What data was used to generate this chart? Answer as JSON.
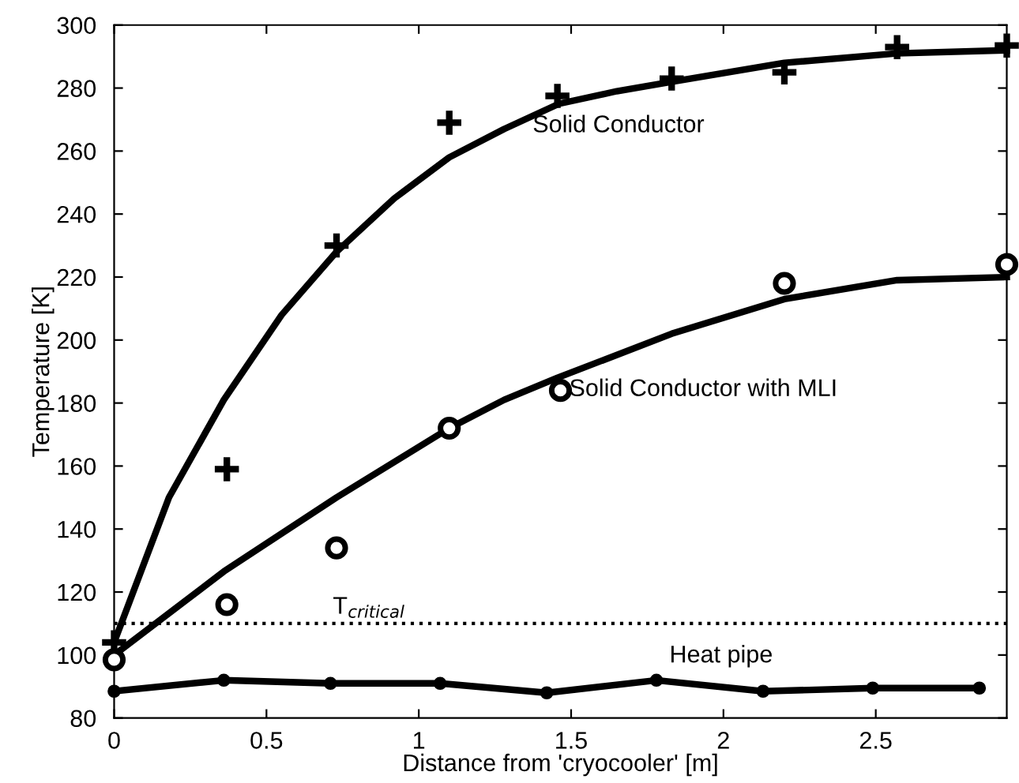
{
  "chart_data": {
    "type": "line",
    "xlabel": "Distance from 'cryocooler' [m]",
    "ylabel": "Temperature [K]",
    "xlim": [
      0,
      2.93
    ],
    "ylim": [
      80,
      300
    ],
    "xticks": [
      0,
      0.5,
      1,
      1.5,
      2,
      2.5
    ],
    "yticks": [
      80,
      100,
      120,
      140,
      160,
      180,
      200,
      220,
      240,
      260,
      280,
      300
    ],
    "grid": false,
    "series": [
      {
        "type": "scatter",
        "marker": "cross",
        "color": "#000000",
        "x": [
          0,
          0.37,
          0.73,
          1.1,
          1.455,
          1.83,
          2.2,
          2.57,
          2.93
        ],
        "values": [
          104,
          159,
          230,
          269,
          277.5,
          283,
          285,
          293,
          293.5
        ]
      },
      {
        "name": "Solid Conductor",
        "marker": "none",
        "color": "#000000",
        "x": [
          0,
          0.18,
          0.36,
          0.55,
          0.73,
          0.92,
          1.1,
          1.28,
          1.46,
          1.65,
          1.83,
          2.2,
          2.57,
          2.93
        ],
        "values": [
          104,
          150,
          181,
          208,
          228,
          245,
          258,
          267,
          275,
          279,
          282,
          288,
          291,
          292
        ]
      },
      {
        "type": "scatter",
        "marker": "circle",
        "color": "#000000",
        "x": [
          0,
          0.37,
          0.73,
          1.1,
          1.465,
          2.2,
          2.93
        ],
        "values": [
          98.5,
          116,
          134,
          172,
          184,
          218,
          224
        ]
      },
      {
        "name": "Solid Conductor with MLI",
        "marker": "none",
        "color": "#000000",
        "x": [
          0,
          0.36,
          0.73,
          1.1,
          1.28,
          1.455,
          1.83,
          2.2,
          2.57,
          2.93
        ],
        "values": [
          100,
          126.5,
          150,
          172,
          181,
          188,
          202,
          213,
          219,
          220
        ]
      },
      {
        "name": "Heat pipe",
        "marker": "circle",
        "color": "#000000",
        "x": [
          0,
          0.36,
          0.71,
          1.07,
          1.42,
          1.78,
          2.13,
          2.49,
          2.84
        ],
        "values": [
          88.5,
          92,
          91,
          91,
          88,
          92,
          88.5,
          89.5,
          89.5
        ]
      }
    ],
    "ref_lines": [
      {
        "axis": "y",
        "value": 110,
        "label": "T$_{critical}$",
        "line_style": "dotted",
        "color": "#000000"
      }
    ]
  }
}
